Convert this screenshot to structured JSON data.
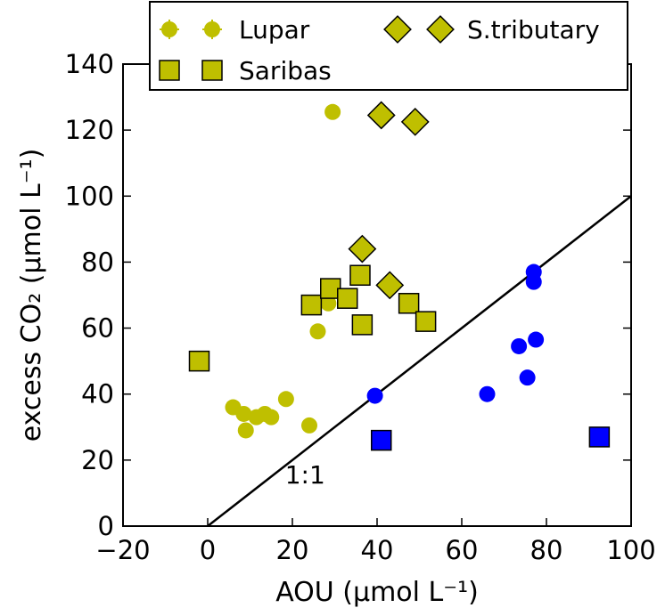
{
  "chart_data": {
    "type": "scatter",
    "xlabel": "AOU (μmol L⁻¹)",
    "ylabel": "excess CO₂ (μmol L⁻¹)",
    "xlim": [
      -20,
      100
    ],
    "ylim": [
      0,
      140
    ],
    "xticks": [
      -20,
      0,
      20,
      40,
      60,
      80,
      100
    ],
    "yticks": [
      0,
      20,
      40,
      60,
      80,
      100,
      120,
      140
    ],
    "xtick_labels": [
      "−20",
      "0",
      "20",
      "40",
      "60",
      "80",
      "100"
    ],
    "ytick_labels": [
      "0",
      "20",
      "40",
      "60",
      "80",
      "100",
      "120",
      "140"
    ],
    "grid": false,
    "legend": {
      "placement": "top"
    },
    "colors": {
      "olive": "#bfbf00",
      "blue": "#0000ff",
      "line": "#000000"
    },
    "annotations": [
      {
        "text": "1:1",
        "x": 23,
        "y": 13
      }
    ],
    "reference_line": {
      "x": [
        0,
        100
      ],
      "y": [
        0,
        100
      ]
    },
    "series": [
      {
        "name": "Lupar",
        "marker": "circle",
        "color": "#bfbf00",
        "points": [
          [
            6,
            36
          ],
          [
            8.5,
            34
          ],
          [
            9,
            29
          ],
          [
            11.5,
            33
          ],
          [
            13.5,
            34
          ],
          [
            15,
            33
          ],
          [
            18.5,
            38.5
          ],
          [
            24,
            30.5
          ],
          [
            26,
            59
          ],
          [
            28.5,
            67.5
          ],
          [
            29.5,
            125.5
          ]
        ]
      },
      {
        "name": "Saribas",
        "marker": "square",
        "color": "#bfbf00",
        "points": [
          [
            -2,
            50
          ],
          [
            24.5,
            67
          ],
          [
            29,
            72
          ],
          [
            33,
            69
          ],
          [
            36,
            76
          ],
          [
            36.5,
            61
          ],
          [
            47.5,
            67.5
          ],
          [
            51.5,
            62
          ]
        ]
      },
      {
        "name": "S.tributary",
        "marker": "diamond",
        "color": "#bfbf00",
        "points": [
          [
            36.5,
            84
          ],
          [
            41,
            124.5
          ],
          [
            43,
            73
          ],
          [
            49,
            122.5
          ]
        ]
      },
      {
        "name": "",
        "marker": "circle",
        "color": "#0000ff",
        "points": [
          [
            39.5,
            39.5
          ],
          [
            66,
            40
          ],
          [
            73.5,
            54.5
          ],
          [
            75.5,
            45
          ],
          [
            77,
            77
          ],
          [
            77,
            74
          ],
          [
            77.5,
            56.5
          ]
        ]
      },
      {
        "name": "",
        "marker": "square",
        "color": "#0000ff",
        "points": [
          [
            41,
            26
          ],
          [
            92.5,
            27
          ]
        ]
      }
    ]
  }
}
